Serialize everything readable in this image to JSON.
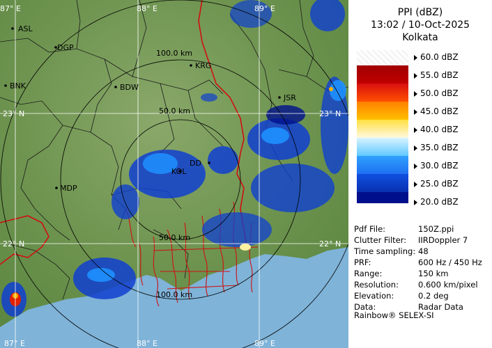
{
  "map": {
    "lon_labels": [
      "87° E",
      "88° E",
      "89° E",
      "87° E",
      "88° E",
      "89° E"
    ],
    "lat_labels": [
      "23° N",
      "23° N",
      "22° N",
      "22° N"
    ],
    "range_labels": [
      "100.0 km",
      "50.0 km",
      "50.0 km",
      "100.0 km"
    ],
    "cities": [
      "ASL",
      "DGP",
      "BNK",
      "BDW",
      "KRG",
      "JSR",
      "MDP",
      "KOL",
      "DD"
    ]
  },
  "panel": {
    "title": "PPI (dBZ)",
    "datetime": "13:02 / 10-Oct-2025",
    "station": "Kolkata",
    "scale": [
      {
        "label": "60.0 dBZ",
        "color": "#ffffff"
      },
      {
        "label": "55.0 dBZ",
        "color": "#8b0000"
      },
      {
        "label": "50.0 dBZ",
        "color": "#e02000"
      },
      {
        "label": "45.0 dBZ",
        "color": "#ffb000"
      },
      {
        "label": "40.0 dBZ",
        "color": "#fff0a0"
      },
      {
        "label": "35.0 dBZ",
        "color": "#a0e8ff"
      },
      {
        "label": "30.0 dBZ",
        "color": "#1e90ff"
      },
      {
        "label": "25.0 dBZ",
        "color": "#1040d0"
      },
      {
        "label": "20.0 dBZ",
        "color": "#00108c"
      }
    ],
    "info": [
      {
        "key": "Pdf File:",
        "value": "150Z.ppi"
      },
      {
        "key": "Clutter Filter:",
        "value": "IIRDoppler 7"
      },
      {
        "key": "Time sampling:",
        "value": "48"
      },
      {
        "key": "PRF:",
        "value": "600 Hz / 450 Hz"
      },
      {
        "key": "Range:",
        "value": "150 km"
      },
      {
        "key": "Resolution:",
        "value": "0.600 km/pixel"
      },
      {
        "key": "Elevation:",
        "value": "0.2 deg"
      },
      {
        "key": "Data:",
        "value": "Radar Data"
      }
    ],
    "footer": "Rainbow® SELEX-SI"
  }
}
